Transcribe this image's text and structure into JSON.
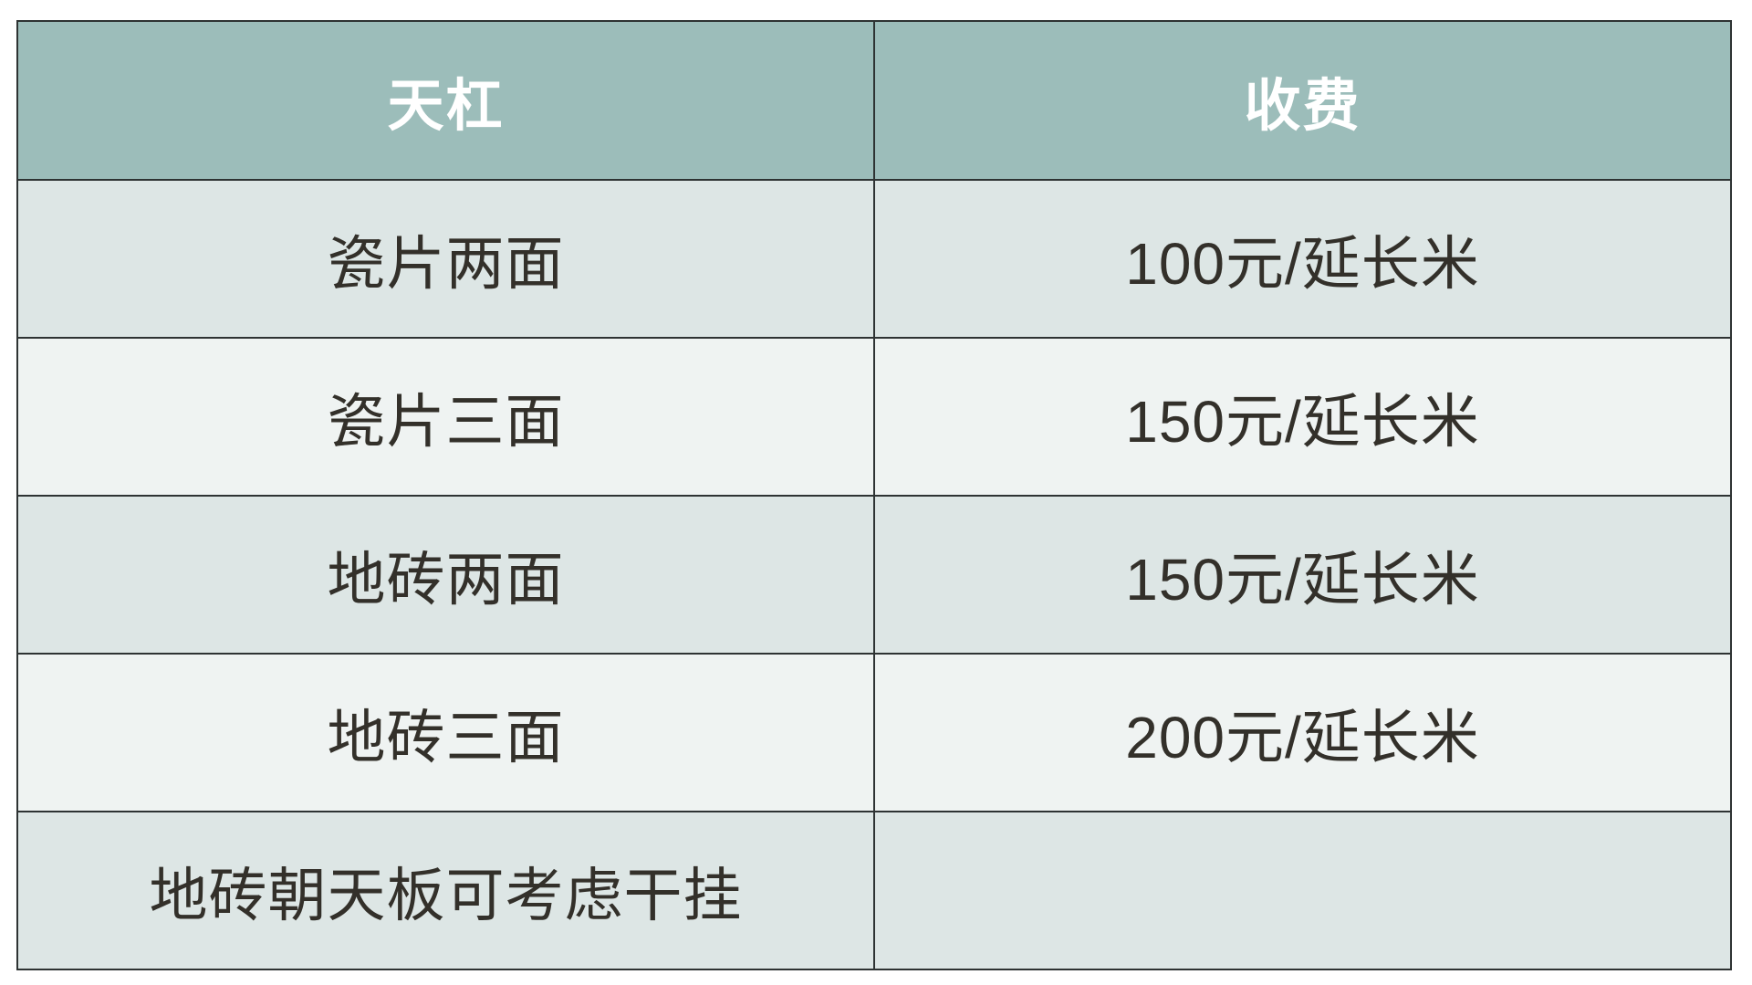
{
  "table": {
    "header": {
      "col1": "天杠",
      "col2": "收费"
    },
    "rows": [
      {
        "item": "瓷片两面",
        "fee": "100元/延长米"
      },
      {
        "item": "瓷片三面",
        "fee": "150元/延长米"
      },
      {
        "item": "地砖两面",
        "fee": "150元/延长米"
      },
      {
        "item": "地砖三面",
        "fee": "200元/延长米"
      },
      {
        "item": "地砖朝天板可考虑干挂",
        "fee": ""
      }
    ],
    "colors": {
      "header_bg": "#9cbdba",
      "header_text": "#ffffff",
      "row_odd_bg": "#dde6e5",
      "row_even_bg": "#eff3f2",
      "border": "#2e3333",
      "body_text": "#33302a"
    }
  }
}
